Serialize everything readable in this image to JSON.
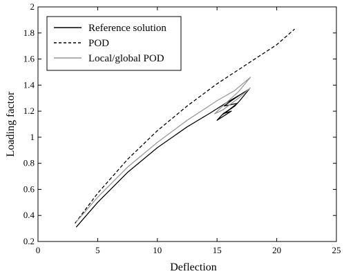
{
  "chart_data": {
    "type": "line",
    "xlabel": "Deflection",
    "ylabel": "Loading factor",
    "xlim": [
      0,
      25
    ],
    "ylim": [
      0.2,
      2
    ],
    "x_ticks": [
      "0",
      "5",
      "10",
      "15",
      "20",
      "25"
    ],
    "y_ticks": [
      "0.2",
      "0.4",
      "0.6",
      "0.8",
      "1",
      "1.2",
      "1.4",
      "1.6",
      "1.8",
      "2"
    ],
    "grid": false,
    "legend_position": "top-left",
    "series": [
      {
        "name": "Reference solution",
        "style": "solid",
        "color": "#000000",
        "points": [
          [
            3.2,
            0.31
          ],
          [
            5,
            0.5
          ],
          [
            7.5,
            0.73
          ],
          [
            10,
            0.92
          ],
          [
            12.5,
            1.08
          ],
          [
            14.5,
            1.19
          ],
          [
            15.7,
            1.26
          ],
          [
            17.0,
            1.33
          ],
          [
            17.7,
            1.37
          ],
          [
            17.0,
            1.33
          ],
          [
            16.2,
            1.28
          ],
          [
            15.6,
            1.24
          ],
          [
            16.7,
            1.26
          ],
          [
            16.0,
            1.21
          ],
          [
            15.5,
            1.18
          ],
          [
            16.2,
            1.2
          ],
          [
            15.0,
            1.13
          ],
          [
            15.4,
            1.17
          ],
          [
            16.5,
            1.24
          ],
          [
            16.9,
            1.28
          ],
          [
            17.7,
            1.37
          ]
        ]
      },
      {
        "name": "POD",
        "style": "dashed",
        "color": "#000000",
        "points": [
          [
            3.1,
            0.34
          ],
          [
            5,
            0.57
          ],
          [
            7.5,
            0.83
          ],
          [
            10,
            1.05
          ],
          [
            12.5,
            1.24
          ],
          [
            15,
            1.41
          ],
          [
            17.5,
            1.56
          ],
          [
            20,
            1.71
          ],
          [
            21.5,
            1.83
          ]
        ]
      },
      {
        "name": "Local/global POD",
        "style": "solid",
        "color": "#999999",
        "points": [
          [
            3.2,
            0.35
          ],
          [
            5,
            0.54
          ],
          [
            7.5,
            0.77
          ],
          [
            10,
            0.96
          ],
          [
            12.5,
            1.13
          ],
          [
            15,
            1.28
          ],
          [
            16.5,
            1.36
          ],
          [
            17.8,
            1.46
          ],
          [
            16.8,
            1.35
          ],
          [
            15.6,
            1.25
          ],
          [
            14.8,
            1.18
          ],
          [
            15.5,
            1.21
          ],
          [
            16.8,
            1.3
          ],
          [
            17.8,
            1.38
          ]
        ]
      }
    ]
  }
}
